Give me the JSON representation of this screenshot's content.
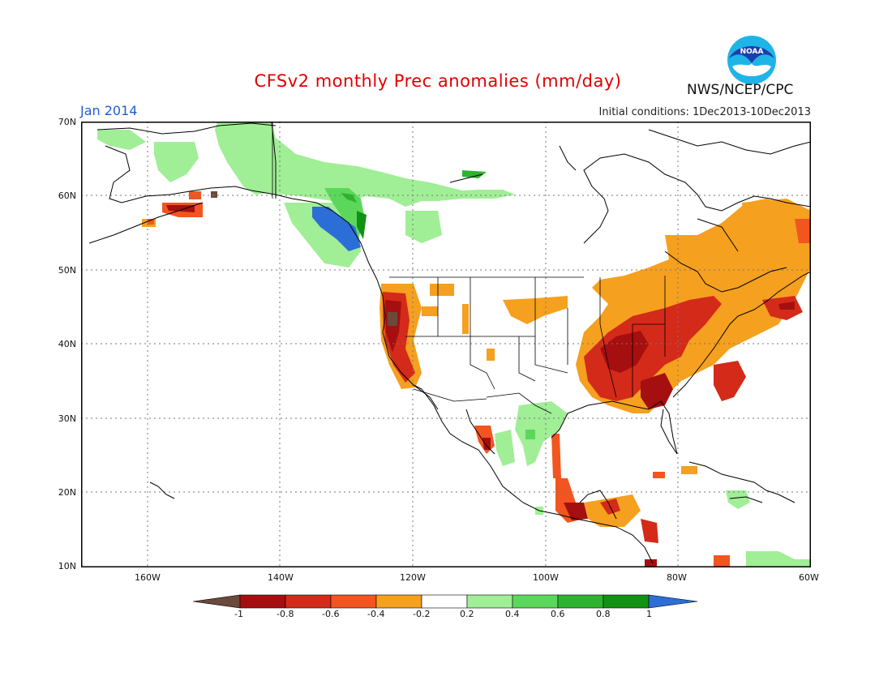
{
  "header": {
    "title": "CFSv2 monthly Prec anomalies (mm/day)",
    "month": "Jan 2014",
    "initial_conditions": "Initial conditions:  1Dec2013-10Dec2013",
    "agency": "NWS/NCEP/CPC",
    "logo_text": "NOAA",
    "logo_icon": "noaa-logo-icon"
  },
  "map": {
    "lat_labels": [
      "70N",
      "60N",
      "50N",
      "40N",
      "30N",
      "20N",
      "10N"
    ],
    "lon_labels": [
      "160W",
      "140W",
      "120W",
      "100W",
      "80W",
      "60W"
    ],
    "lon_range": [
      -170,
      -60
    ],
    "lat_range": [
      10,
      70
    ]
  },
  "colorbar": {
    "labels": [
      "-1",
      "-0.8",
      "-0.6",
      "-0.4",
      "-0.2",
      "0.2",
      "0.4",
      "0.6",
      "0.8",
      "1"
    ],
    "colors": [
      "#6b4a3a",
      "#a50f0f",
      "#d42a1a",
      "#f25520",
      "#f5a01e",
      "#ffffff",
      "#a0ee96",
      "#5bd85b",
      "#2db32d",
      "#129212",
      "#2c6ed8"
    ]
  },
  "colors": {
    "dry_strong": "#a50f0f",
    "dry": "#d42a1a",
    "dry_moderate": "#f25520",
    "dry_light": "#f5a01e",
    "wet_light": "#a0ee96",
    "wet": "#5bd85b",
    "wet_strong": "#2db32d",
    "wet_extreme": "#2c6ed8",
    "dry_extreme": "#6b4a3a",
    "title": "#e00000",
    "month": "#1e5bd8"
  }
}
